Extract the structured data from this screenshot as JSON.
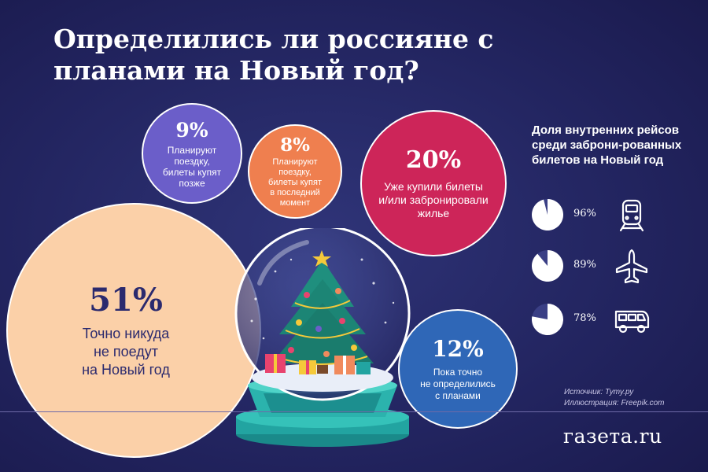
{
  "title": "Определились ли россияне с планами на Новый год?",
  "colors": {
    "background": "#1f2058",
    "nowhere": "#fbd0a8",
    "later": "#6b5ec9",
    "last_minute": "#ef7f4f",
    "bought": "#cd2559",
    "undecided": "#2f67b7"
  },
  "chart_data": [
    {
      "type": "bubble",
      "title": "Определились ли россияне с планами на Новый год?",
      "categories": [
        "Точно никуда не поедут на Новый год",
        "Планируют поездку, билеты купят позже",
        "Планируют поездку, билеты купят в последний момент",
        "Уже купили билеты и/или забронировали жилье",
        "Пока точно не определились с планами"
      ],
      "values": [
        51,
        9,
        8,
        20,
        12
      ],
      "unit": "%"
    },
    {
      "type": "pie",
      "title": "Доля внутренних рейсов среди заброни-рованных билетов на Новый год",
      "categories": [
        "train-icon",
        "plane-icon",
        "bus-icon"
      ],
      "values": [
        96,
        89,
        78
      ],
      "unit": "%"
    }
  ],
  "bubbles": {
    "nowhere": {
      "pct": "51%",
      "label": "Точно никуда\nне поедут\nна Новый год"
    },
    "later": {
      "pct": "9%",
      "label": "Планируют\nпоездку,\nбилеты купят\nпозже"
    },
    "last_minute": {
      "pct": "8%",
      "label": "Планируют\nпоездку,\nбилеты купят\nв последний\nмомент"
    },
    "bought": {
      "pct": "20%",
      "label": "Уже купили билеты\nи/или забронировали\nжилье"
    },
    "undecided": {
      "pct": "12%",
      "label": "Пока точно\nне определились\nс планами"
    }
  },
  "domestic": {
    "title": "Доля внутренних рейсов среди заброни-рованных билетов на Новый год",
    "rows": [
      {
        "value": 96,
        "label": "96%",
        "icon": "train-icon"
      },
      {
        "value": 89,
        "label": "89%",
        "icon": "plane-icon"
      },
      {
        "value": 78,
        "label": "78%",
        "icon": "bus-icon"
      }
    ]
  },
  "source": {
    "line1": "Источник: Туту.ру",
    "line2": "Иллюстрация: Freepik.com"
  },
  "brand": "газета.ru"
}
